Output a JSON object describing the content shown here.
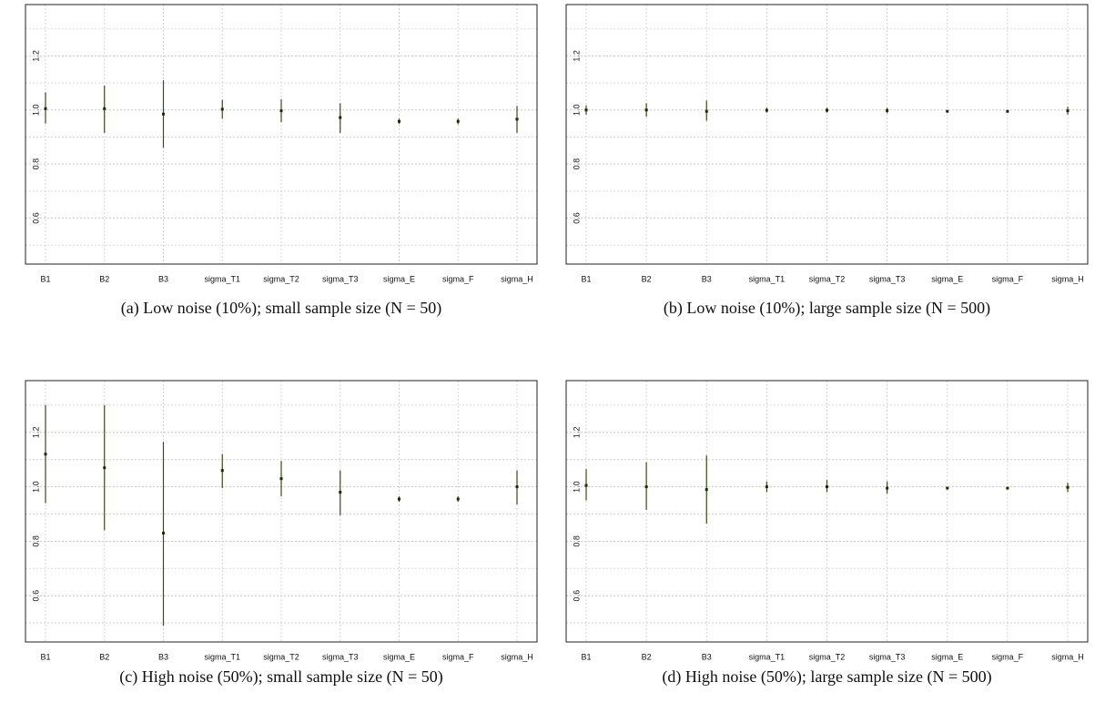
{
  "chart_data": [
    {
      "type": "errorbar",
      "caption": "(a) Low noise (10%); small sample size (N = 50)",
      "categories": [
        "B1",
        "B2",
        "B3",
        "sigma_T1",
        "sigma_T2",
        "sigma_T3",
        "sigma_E",
        "sigma_F",
        "sigma_H"
      ],
      "values": [
        1.005,
        1.005,
        0.985,
        1.003,
        0.997,
        0.972,
        0.958,
        0.958,
        0.966
      ],
      "lower": [
        0.95,
        0.915,
        0.86,
        0.968,
        0.955,
        0.915,
        0.948,
        0.947,
        0.915
      ],
      "upper": [
        1.065,
        1.09,
        1.11,
        1.038,
        1.04,
        1.025,
        0.968,
        0.968,
        1.015
      ],
      "color": "#3b4a17",
      "ylim": [
        0.43,
        1.39
      ],
      "yticks": [
        0.6,
        0.8,
        {
          "value": 1,
          "label": "1.0"
        },
        1.2
      ],
      "minor_yticks": [
        0.5,
        0.7,
        0.9,
        1.1,
        1.3
      ],
      "grid": true
    },
    {
      "type": "errorbar",
      "caption": "(b) Low noise (10%); large sample size (N = 500)",
      "categories": [
        "B1",
        "B2",
        "B3",
        "sigma_T1",
        "sigma_T2",
        "sigma_T3",
        "sigma_E",
        "sigma_F",
        "sigma_H"
      ],
      "values": [
        1.0,
        1.0,
        0.995,
        0.999,
        0.999,
        0.998,
        0.995,
        0.995,
        0.997
      ],
      "lower": [
        0.983,
        0.975,
        0.96,
        0.99,
        0.99,
        0.988,
        0.993,
        0.993,
        0.983
      ],
      "upper": [
        1.017,
        1.025,
        1.035,
        1.008,
        1.008,
        1.008,
        0.997,
        0.997,
        1.012
      ],
      "color": "#3b4a17",
      "ylim": [
        0.43,
        1.39
      ],
      "yticks": [
        0.6,
        0.8,
        {
          "value": 1,
          "label": "1.0"
        },
        1.2
      ],
      "minor_yticks": [
        0.5,
        0.7,
        0.9,
        1.1,
        1.3
      ],
      "grid": true
    },
    {
      "type": "errorbar",
      "caption": "(c) High noise (50%); small sample size (N = 50)",
      "categories": [
        "B1",
        "B2",
        "B3",
        "sigma_T1",
        "sigma_T2",
        "sigma_T3",
        "sigma_E",
        "sigma_F",
        "sigma_H"
      ],
      "values": [
        1.12,
        1.07,
        0.83,
        1.06,
        1.03,
        0.98,
        0.955,
        0.955,
        1.0
      ],
      "lower": [
        0.94,
        0.84,
        0.49,
        0.995,
        0.965,
        0.895,
        0.945,
        0.945,
        0.935
      ],
      "upper": [
        1.3,
        1.3,
        1.165,
        1.12,
        1.095,
        1.06,
        0.965,
        0.965,
        1.06
      ],
      "color": "#3b4a17",
      "ylim": [
        0.43,
        1.39
      ],
      "yticks": [
        0.6,
        0.8,
        {
          "value": 1,
          "label": "1.0"
        },
        1.2
      ],
      "minor_yticks": [
        0.5,
        0.7,
        0.9,
        1.1,
        1.3
      ],
      "grid": true
    },
    {
      "type": "errorbar",
      "caption": "(d) High noise (50%); large sample size (N = 500)",
      "categories": [
        "B1",
        "B2",
        "B3",
        "sigma_T1",
        "sigma_T2",
        "sigma_T3",
        "sigma_E",
        "sigma_F",
        "sigma_H"
      ],
      "values": [
        1.005,
        1.0,
        0.99,
        1.0,
        1.0,
        0.995,
        0.995,
        0.995,
        0.998
      ],
      "lower": [
        0.95,
        0.915,
        0.865,
        0.98,
        0.98,
        0.975,
        0.992,
        0.992,
        0.98
      ],
      "upper": [
        1.065,
        1.09,
        1.115,
        1.02,
        1.025,
        1.02,
        0.998,
        0.998,
        1.015
      ],
      "color": "#3b4a17",
      "ylim": [
        0.43,
        1.39
      ],
      "yticks": [
        0.6,
        0.8,
        {
          "value": 1,
          "label": "1.0"
        },
        1.2
      ],
      "minor_yticks": [
        0.5,
        0.7,
        0.9,
        1.1,
        1.3
      ],
      "grid": true
    }
  ]
}
